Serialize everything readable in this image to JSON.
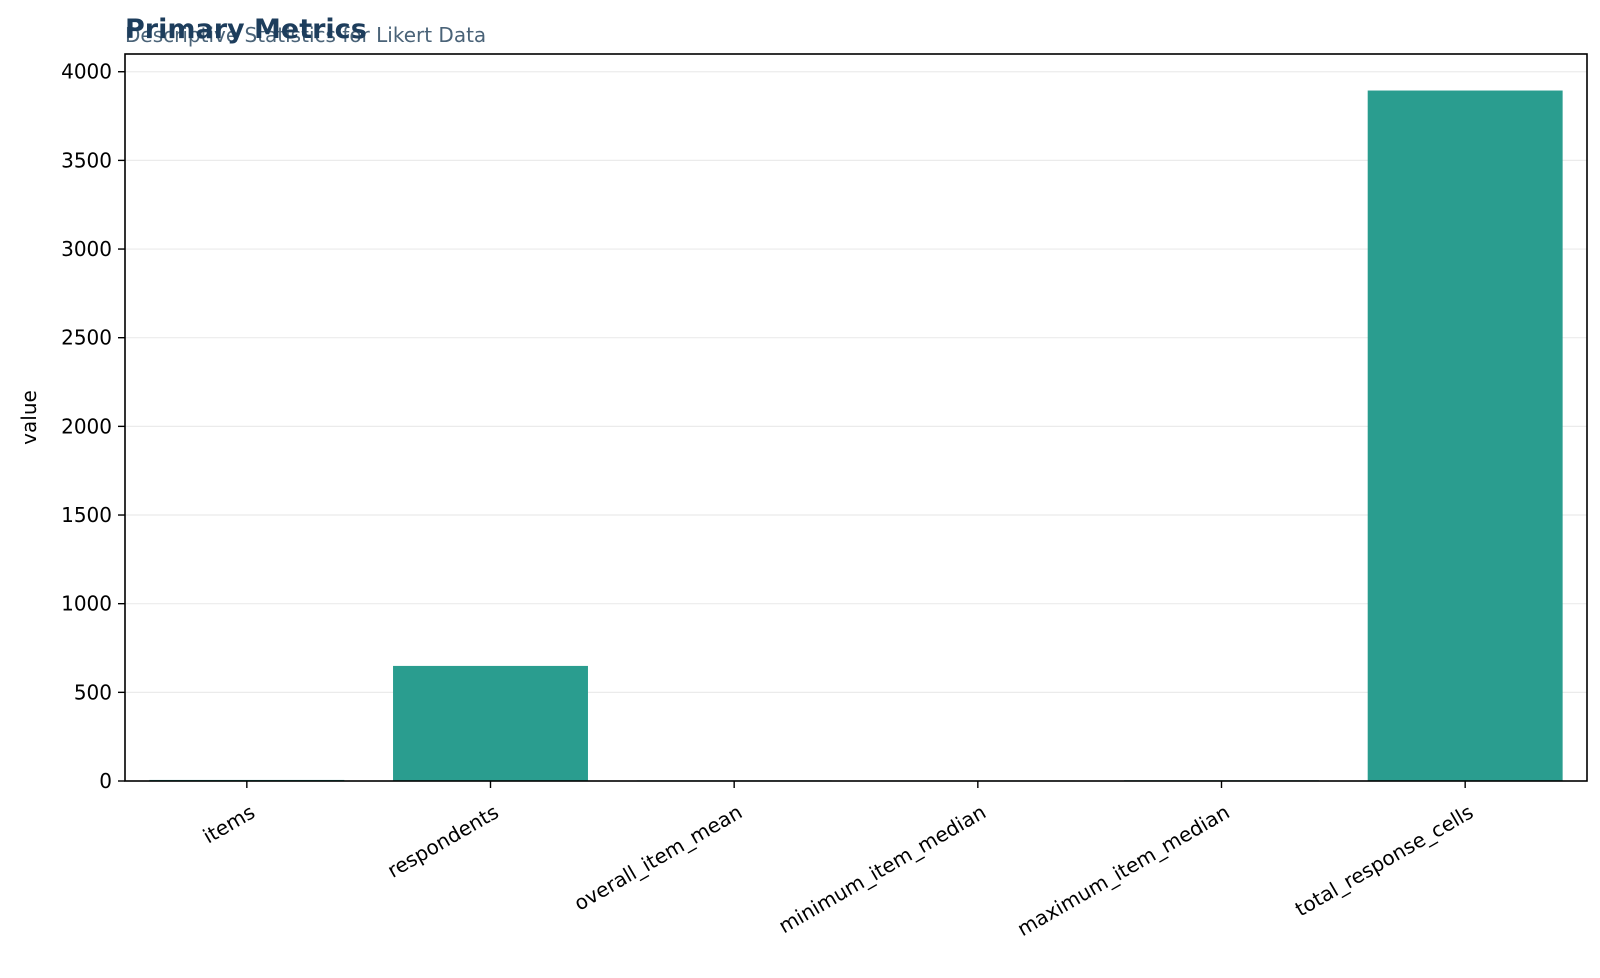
{
  "chart_data": {
    "type": "bar",
    "title": "Primary Metrics",
    "subtitle": "Descriptive Statistics for Likert Data",
    "xlabel": "",
    "ylabel": "value",
    "categories": [
      "items",
      "respondents",
      "overall_item_mean",
      "minimum_item_median",
      "maximum_item_median",
      "total_response_cells"
    ],
    "values": [
      6,
      649,
      3.4,
      3,
      4,
      3894
    ],
    "ylim": [
      0,
      4100
    ],
    "yticks": [
      0,
      500,
      1000,
      1500,
      2000,
      2500,
      3000,
      3500,
      4000
    ],
    "ytick_labels": [
      "0",
      "500",
      "1000",
      "1500",
      "2000",
      "2500",
      "3000",
      "3500",
      "4000"
    ],
    "grid": "horizontal",
    "legend": "none",
    "colors": {
      "bar": "#2a9d8f",
      "title": "#1d3d5c",
      "subtitle": "#4a6378",
      "grid": "#ebebeb",
      "axis": "#000000"
    }
  }
}
